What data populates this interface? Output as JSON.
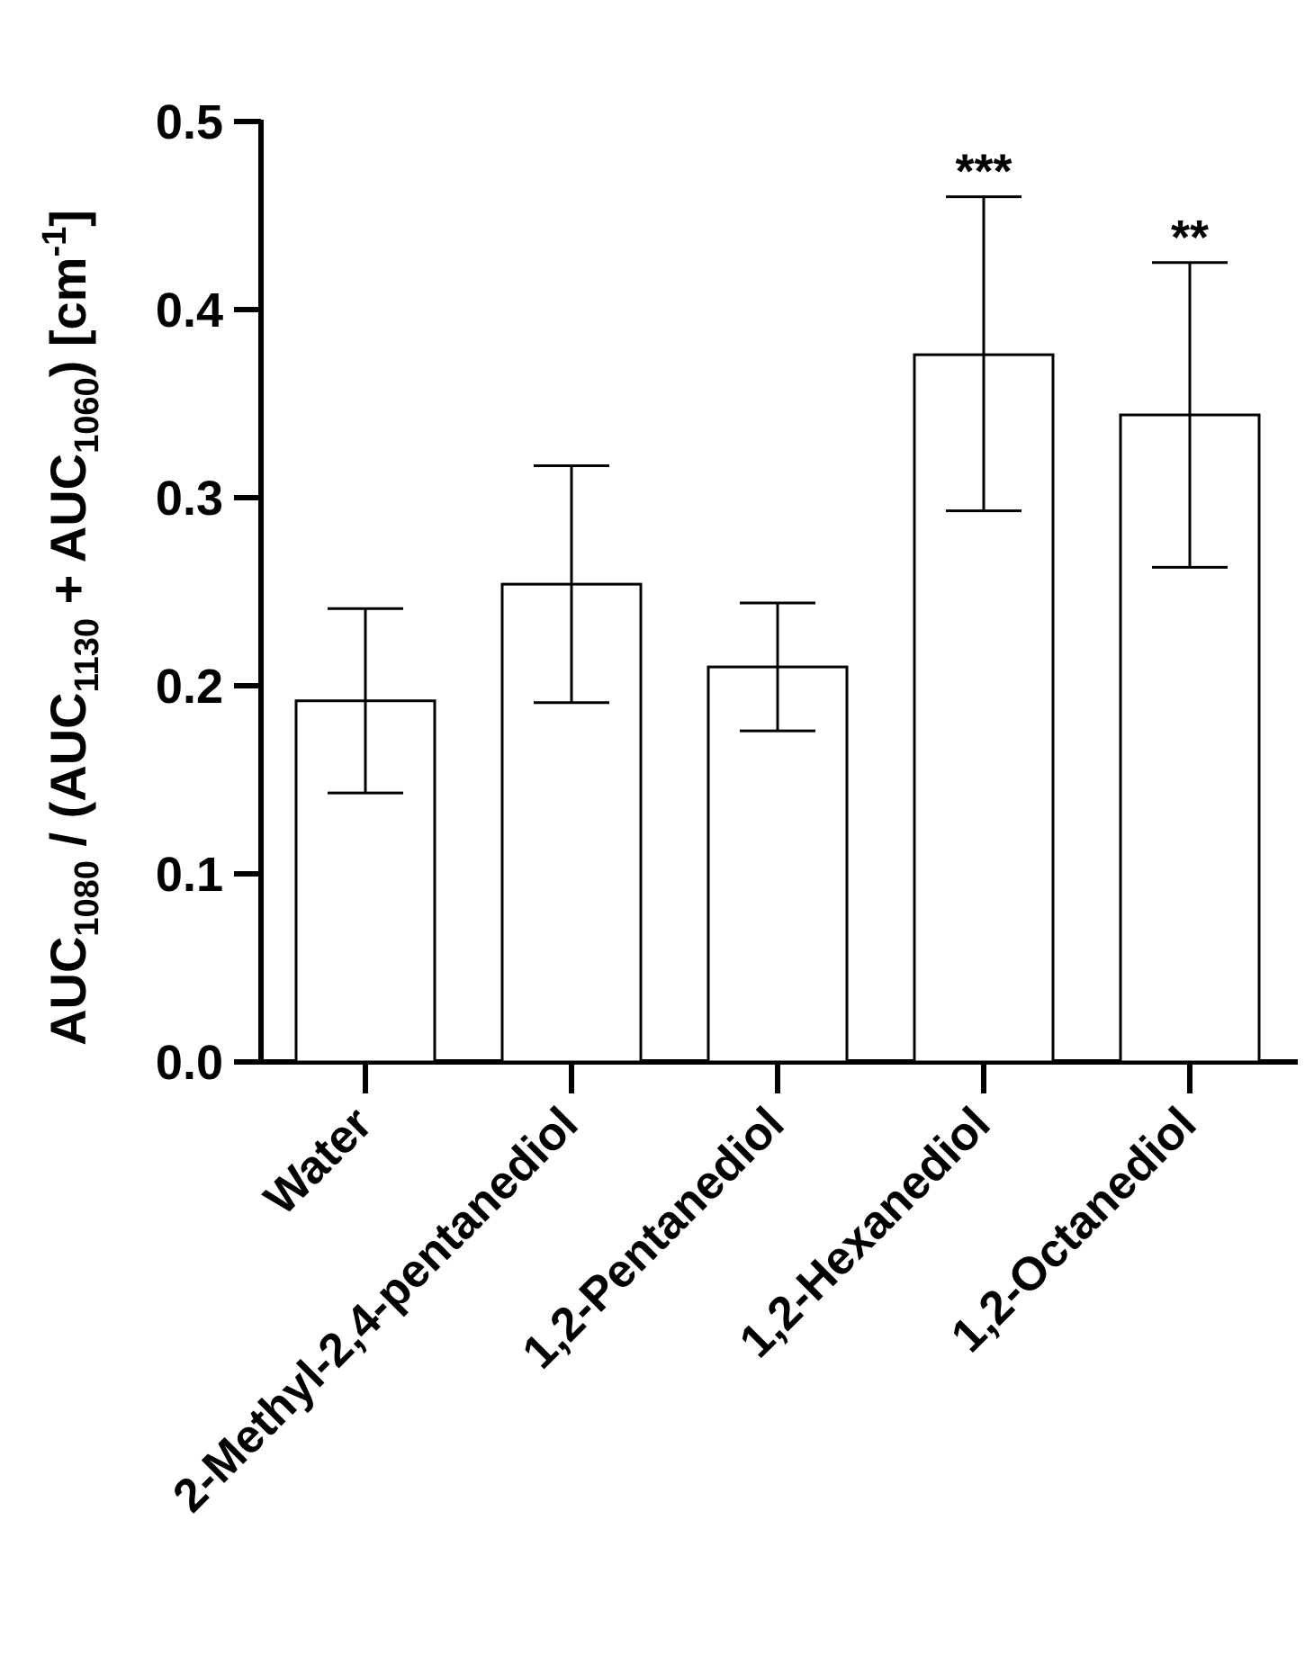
{
  "chart_data": {
    "type": "bar",
    "title": "",
    "xlabel": "",
    "ylabel": {
      "parts": [
        {
          "text": "AUC",
          "sub": false
        },
        {
          "text": "1080",
          "sub": true
        },
        {
          "text": " / (AUC",
          "sub": false
        },
        {
          "text": "1130",
          "sub": true
        },
        {
          "text": " + AUC",
          "sub": false
        },
        {
          "text": "1060",
          "sub": true
        },
        {
          "text": ") [cm",
          "sub": false
        },
        {
          "text": "-1",
          "sup": true
        },
        {
          "text": "]",
          "sub": false
        }
      ]
    },
    "ylim": [
      0,
      0.5
    ],
    "yticks": [
      "0.0",
      "0.1",
      "0.2",
      "0.3",
      "0.4",
      "0.5"
    ],
    "categories": [
      "Water",
      "2-Methyl-2,4-pentanediol",
      "1,2-Pentanediol",
      "1,2-Hexanediol",
      "1,2-Octanediol"
    ],
    "values": [
      0.192,
      0.254,
      0.21,
      0.376,
      0.344
    ],
    "error_low": [
      0.143,
      0.191,
      0.176,
      0.293,
      0.263
    ],
    "error_high": [
      0.241,
      0.317,
      0.244,
      0.46,
      0.425
    ],
    "significance": [
      "",
      "",
      "",
      "***",
      "**"
    ],
    "bar_fill": "#ffffff",
    "bar_stroke": "#000000"
  }
}
